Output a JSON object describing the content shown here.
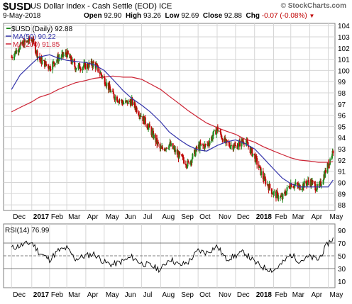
{
  "header": {
    "symbol": "$USD",
    "name": "US Dollar Index - Cash Settle (EOD) ICE",
    "date": "9-May-2018",
    "open_label": "Open",
    "open": "92.90",
    "high_label": "High",
    "high": "93.26",
    "low_label": "Low",
    "low": "92.69",
    "close_label": "Close",
    "close": "92.88",
    "chg_label": "Chg",
    "chg": "-0.07 (-0.08%)",
    "logo": "© StockCharts.com"
  },
  "colors": {
    "price": "#228b22",
    "ma50": "#3333aa",
    "ma200": "#cc2233",
    "rsi": "#000000",
    "down": "#c00000"
  },
  "chart_data": [
    {
      "type": "line",
      "legend": [
        "$USD (Daily) 92.88",
        "MA(50) 90.22",
        "MA(200) 91.85"
      ],
      "legend_position": "top-left",
      "x": [
        "2016-12-01",
        "2016-12-15",
        "2017-01-03",
        "2017-01-15",
        "2017-02-01",
        "2017-02-15",
        "2017-03-01",
        "2017-03-15",
        "2017-04-01",
        "2017-04-15",
        "2017-05-01",
        "2017-05-15",
        "2017-06-01",
        "2017-06-15",
        "2017-07-01",
        "2017-07-15",
        "2017-08-01",
        "2017-08-15",
        "2017-09-01",
        "2017-09-15",
        "2017-10-01",
        "2017-10-15",
        "2017-11-01",
        "2017-11-15",
        "2017-12-01",
        "2017-12-15",
        "2018-01-01",
        "2018-01-15",
        "2018-02-01",
        "2018-02-15",
        "2018-03-01",
        "2018-03-15",
        "2018-04-01",
        "2018-04-15",
        "2018-05-01",
        "2018-05-09"
      ],
      "series": [
        {
          "name": "$USD (Daily)",
          "values": [
            101.2,
            102.2,
            102.8,
            101.0,
            100.3,
            101.1,
            101.5,
            100.3,
            100.4,
            100.6,
            99.2,
            97.8,
            97.1,
            97.2,
            95.9,
            94.7,
            92.9,
            93.4,
            92.3,
            91.6,
            93.2,
            93.3,
            94.8,
            93.5,
            93.2,
            93.8,
            92.3,
            90.4,
            89.0,
            88.6,
            89.9,
            89.6,
            90.1,
            89.4,
            91.6,
            92.88
          ]
        },
        {
          "name": "MA(50)",
          "values": [
            98.3,
            99.6,
            100.6,
            101.2,
            101.4,
            101.1,
            100.9,
            100.8,
            100.7,
            100.5,
            100.0,
            99.2,
            98.2,
            97.5,
            96.9,
            96.3,
            95.4,
            94.5,
            93.8,
            93.3,
            92.9,
            92.8,
            93.3,
            93.6,
            93.8,
            93.5,
            93.0,
            92.2,
            91.2,
            90.4,
            89.9,
            89.6,
            89.6,
            89.6,
            89.6,
            90.22
          ]
        },
        {
          "name": "MA(200)",
          "values": [
            96.3,
            96.7,
            97.2,
            97.6,
            97.9,
            98.3,
            98.6,
            98.9,
            99.1,
            99.3,
            99.4,
            99.5,
            99.4,
            99.4,
            99.2,
            98.8,
            98.3,
            97.7,
            97.0,
            96.4,
            95.8,
            95.3,
            94.9,
            94.6,
            94.3,
            93.9,
            93.6,
            93.2,
            92.8,
            92.5,
            92.2,
            92.0,
            91.9,
            91.8,
            91.8,
            91.85
          ]
        }
      ],
      "ylim": [
        87.5,
        104.2
      ],
      "yticks": [
        88,
        89,
        90,
        91,
        92,
        93,
        94,
        95,
        96,
        97,
        98,
        99,
        100,
        101,
        102,
        103,
        104
      ],
      "grid": true
    },
    {
      "type": "line",
      "legend": [
        "RSI(14) 76.99"
      ],
      "x": [
        "2016-12-01",
        "2016-12-15",
        "2017-01-03",
        "2017-01-15",
        "2017-02-01",
        "2017-02-15",
        "2017-03-01",
        "2017-03-15",
        "2017-04-01",
        "2017-04-15",
        "2017-05-01",
        "2017-05-15",
        "2017-06-01",
        "2017-06-15",
        "2017-07-01",
        "2017-07-15",
        "2017-08-01",
        "2017-08-15",
        "2017-09-01",
        "2017-09-15",
        "2017-10-01",
        "2017-10-15",
        "2017-11-01",
        "2017-11-15",
        "2017-12-01",
        "2017-12-15",
        "2018-01-01",
        "2018-01-15",
        "2018-02-01",
        "2018-02-15",
        "2018-03-01",
        "2018-03-15",
        "2018-04-01",
        "2018-04-15",
        "2018-05-01",
        "2018-05-09"
      ],
      "series": [
        {
          "name": "RSI(14)",
          "values": [
            62,
            66,
            71,
            55,
            44,
            58,
            62,
            45,
            50,
            53,
            40,
            36,
            42,
            48,
            38,
            35,
            28,
            46,
            35,
            40,
            58,
            55,
            65,
            45,
            50,
            56,
            40,
            32,
            27,
            38,
            52,
            42,
            48,
            44,
            70,
            76.99
          ]
        }
      ],
      "ylim": [
        0,
        100
      ],
      "yticks": [
        10,
        30,
        50,
        70,
        90
      ],
      "reference_lines": [
        30,
        50,
        70
      ]
    }
  ],
  "x_axis": {
    "labels": [
      {
        "text": "Dec",
        "bold": false,
        "date": "2016-12-01"
      },
      {
        "text": "2017",
        "bold": true,
        "date": "2017-01-03"
      },
      {
        "text": "Feb",
        "bold": false,
        "date": "2017-02-01"
      },
      {
        "text": "Mar",
        "bold": false,
        "date": "2017-03-01"
      },
      {
        "text": "Apr",
        "bold": false,
        "date": "2017-04-01"
      },
      {
        "text": "May",
        "bold": false,
        "date": "2017-05-01"
      },
      {
        "text": "Jun",
        "bold": false,
        "date": "2017-06-01"
      },
      {
        "text": "Jul",
        "bold": false,
        "date": "2017-07-01"
      },
      {
        "text": "Aug",
        "bold": false,
        "date": "2017-08-01"
      },
      {
        "text": "Sep",
        "bold": false,
        "date": "2017-09-01"
      },
      {
        "text": "Oct",
        "bold": false,
        "date": "2017-10-01"
      },
      {
        "text": "Nov",
        "bold": false,
        "date": "2017-11-01"
      },
      {
        "text": "Dec",
        "bold": false,
        "date": "2017-12-01"
      },
      {
        "text": "2018",
        "bold": true,
        "date": "2018-01-01"
      },
      {
        "text": "Feb",
        "bold": false,
        "date": "2018-02-01"
      },
      {
        "text": "Mar",
        "bold": false,
        "date": "2018-03-01"
      },
      {
        "text": "Apr",
        "bold": false,
        "date": "2018-04-01"
      },
      {
        "text": "May",
        "bold": false,
        "date": "2018-05-01"
      }
    ]
  }
}
